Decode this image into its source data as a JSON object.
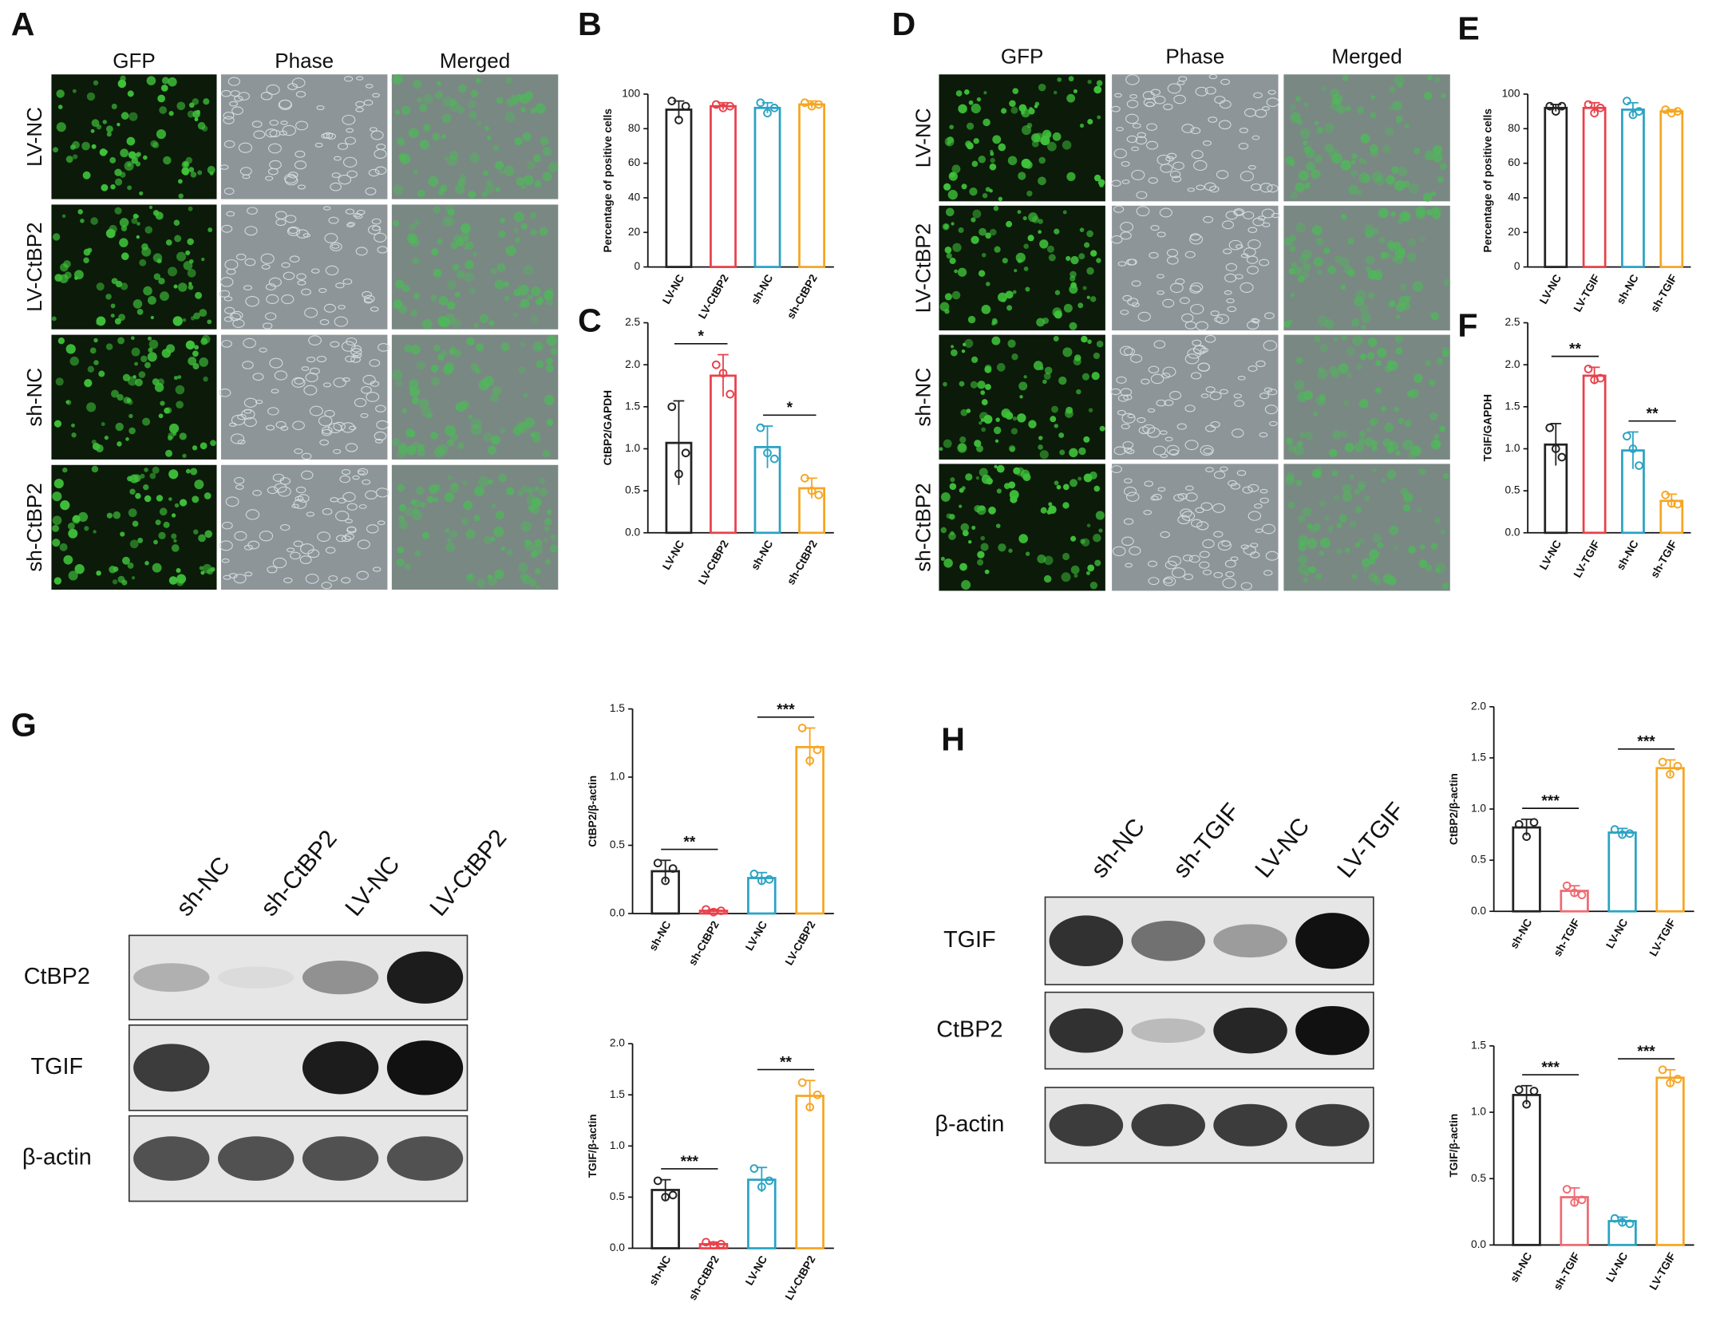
{
  "microscopy": [
    {
      "label": "A",
      "columns": [
        "GFP",
        "Phase",
        "Merged"
      ],
      "rows": [
        "LV-NC",
        "LV-CtBP2",
        "sh-NC",
        "sh-CtBP2"
      ]
    },
    {
      "label": "D",
      "columns": [
        "GFP",
        "Phase",
        "Merged"
      ],
      "rows": [
        "LV-NC",
        "LV-CtBP2",
        "sh-NC",
        "sh-CtBP2"
      ]
    }
  ],
  "blots": [
    {
      "label": "G",
      "lanes": [
        "sh-NC",
        "sh-CtBP2",
        "LV-NC",
        "LV-CtBP2"
      ],
      "proteins": [
        "CtBP2",
        "TGIF",
        "β-actin"
      ]
    },
    {
      "label": "H",
      "lanes": [
        "sh-NC",
        "sh-TGIF",
        "LV-NC",
        "LV-TGIF"
      ],
      "proteins": [
        "TGIF",
        "CtBP2",
        "β-actin"
      ]
    }
  ],
  "chart_data": [
    {
      "type": "bar",
      "label": "B",
      "ylabel": "Percentage of positive cells",
      "categories": [
        "LV-NC",
        "LV-CtBP2",
        "sh-NC",
        "sh-CtBP2"
      ],
      "colors": [
        "#222222",
        "#e8414a",
        "#2aa3c4",
        "#f5a623"
      ],
      "values": [
        91,
        93,
        92,
        94
      ],
      "errors": [
        5,
        2,
        3,
        2
      ],
      "points": [
        [
          96,
          85,
          93
        ],
        [
          94,
          92,
          93
        ],
        [
          95,
          89,
          92
        ],
        [
          95,
          93,
          94
        ]
      ],
      "ylim": [
        0,
        100
      ],
      "yticks": [
        0,
        20,
        40,
        60,
        80,
        100
      ],
      "significance": []
    },
    {
      "type": "bar",
      "label": "C",
      "ylabel": "CtBP2/GAPDH",
      "categories": [
        "LV-NC",
        "LV-CtBP2",
        "sh-NC",
        "sh-CtBP2"
      ],
      "colors": [
        "#222222",
        "#e8414a",
        "#2aa3c4",
        "#f5a623"
      ],
      "values": [
        1.07,
        1.87,
        1.02,
        0.53
      ],
      "errors": [
        0.5,
        0.25,
        0.25,
        0.12
      ],
      "points": [
        [
          1.5,
          0.7,
          0.95
        ],
        [
          2.0,
          1.9,
          1.65
        ],
        [
          1.25,
          0.95,
          0.88
        ],
        [
          0.65,
          0.5,
          0.45
        ]
      ],
      "ylim": [
        0,
        2.5
      ],
      "yticks": [
        {
          "value": 0,
          "label": "0.0"
        },
        0.5,
        {
          "value": 1,
          "label": "1.0"
        },
        1.5,
        {
          "value": 2,
          "label": "2.0"
        },
        2.5
      ],
      "significance": [
        {
          "label": "*",
          "pair": [
            "LV-NC",
            "LV-CtBP2"
          ]
        },
        {
          "label": "*",
          "pair": [
            "sh-NC",
            "sh-CtBP2"
          ]
        }
      ]
    },
    {
      "type": "bar",
      "label": "E",
      "ylabel": "Percentage of positive cells",
      "categories": [
        "LV-NC",
        "LV-TGIF",
        "sh-NC",
        "sh-TGIF"
      ],
      "colors": [
        "#222222",
        "#e8414a",
        "#2aa3c4",
        "#f5a623"
      ],
      "values": [
        92,
        92,
        91,
        90
      ],
      "errors": [
        2,
        3,
        4,
        1
      ],
      "points": [
        [
          93,
          90,
          93
        ],
        [
          94,
          89,
          92
        ],
        [
          96,
          88,
          90
        ],
        [
          91,
          89,
          90
        ]
      ],
      "ylim": [
        0,
        100
      ],
      "yticks": [
        0,
        20,
        40,
        60,
        80,
        100
      ],
      "significance": []
    },
    {
      "type": "bar",
      "label": "F",
      "ylabel": "TGIF/GAPDH",
      "categories": [
        "LV-NC",
        "LV-TGIF",
        "sh-NC",
        "sh-TGIF"
      ],
      "colors": [
        "#222222",
        "#e8414a",
        "#2aa3c4",
        "#f5a623"
      ],
      "values": [
        1.05,
        1.87,
        0.98,
        0.38
      ],
      "errors": [
        0.25,
        0.1,
        0.22,
        0.08
      ],
      "points": [
        [
          1.25,
          1.0,
          0.9
        ],
        [
          1.95,
          1.82,
          1.84
        ],
        [
          1.15,
          1.0,
          0.8
        ],
        [
          0.45,
          0.35,
          0.34
        ]
      ],
      "ylim": [
        0,
        2.5
      ],
      "yticks": [
        {
          "value": 0,
          "label": "0.0"
        },
        0.5,
        {
          "value": 1,
          "label": "1.0"
        },
        1.5,
        {
          "value": 2,
          "label": "2.0"
        },
        2.5
      ],
      "significance": [
        {
          "label": "**",
          "pair": [
            "LV-NC",
            "LV-TGIF"
          ]
        },
        {
          "label": "**",
          "pair": [
            "sh-NC",
            "sh-TGIF"
          ]
        }
      ]
    },
    {
      "type": "bar",
      "ylabel": "CtBP2/β-actin",
      "categories": [
        "sh-NC",
        "sh-CtBP2",
        "LV-NC",
        "LV-CtBP2"
      ],
      "colors": [
        "#222222",
        "#e8414a",
        "#2aa3c4",
        "#f5a623"
      ],
      "values": [
        0.31,
        0.02,
        0.26,
        1.22
      ],
      "errors": [
        0.08,
        0.01,
        0.04,
        0.14
      ],
      "points": [
        [
          0.37,
          0.24,
          0.33
        ],
        [
          0.03,
          0.01,
          0.02
        ],
        [
          0.29,
          0.24,
          0.25
        ],
        [
          1.36,
          1.12,
          1.2
        ]
      ],
      "ylim": [
        0,
        1.5
      ],
      "yticks": [
        {
          "value": 0,
          "label": "0.0"
        },
        0.5,
        {
          "value": 1,
          "label": "1.0"
        },
        1.5
      ],
      "significance": [
        {
          "label": "**",
          "pair": [
            "sh-NC",
            "sh-CtBP2"
          ]
        },
        {
          "label": "***",
          "pair": [
            "LV-NC",
            "LV-CtBP2"
          ]
        }
      ]
    },
    {
      "type": "bar",
      "ylabel": "TGIF/β-actin",
      "categories": [
        "sh-NC",
        "sh-CtBP2",
        "LV-NC",
        "LV-CtBP2"
      ],
      "colors": [
        "#222222",
        "#e8414a",
        "#2aa3c4",
        "#f5a623"
      ],
      "values": [
        0.57,
        0.04,
        0.67,
        1.49
      ],
      "errors": [
        0.1,
        0.02,
        0.12,
        0.15
      ],
      "points": [
        [
          0.66,
          0.5,
          0.52
        ],
        [
          0.06,
          0.03,
          0.04
        ],
        [
          0.78,
          0.6,
          0.66
        ],
        [
          1.62,
          1.38,
          1.5
        ]
      ],
      "ylim": [
        0,
        2
      ],
      "yticks": [
        {
          "value": 0,
          "label": "0.0"
        },
        0.5,
        {
          "value": 1,
          "label": "1.0"
        },
        1.5,
        {
          "value": 2,
          "label": "2.0"
        }
      ],
      "significance": [
        {
          "label": "***",
          "pair": [
            "sh-NC",
            "sh-CtBP2"
          ]
        },
        {
          "label": "**",
          "pair": [
            "LV-NC",
            "LV-CtBP2"
          ]
        }
      ]
    },
    {
      "type": "bar",
      "ylabel": "CtBP2/β-actin",
      "categories": [
        "sh-NC",
        "sh-TGIF",
        "LV-NC",
        "LV-TGIF"
      ],
      "colors": [
        "#222222",
        "#ef6a72",
        "#2aa3c4",
        "#f5a623"
      ],
      "values": [
        0.82,
        0.2,
        0.77,
        1.4
      ],
      "errors": [
        0.08,
        0.05,
        0.04,
        0.08
      ],
      "points": [
        [
          0.85,
          0.73,
          0.87
        ],
        [
          0.25,
          0.18,
          0.16
        ],
        [
          0.8,
          0.75,
          0.76
        ],
        [
          1.46,
          1.34,
          1.42
        ]
      ],
      "ylim": [
        0,
        2
      ],
      "yticks": [
        {
          "value": 0,
          "label": "0.0"
        },
        0.5,
        {
          "value": 1,
          "label": "1.0"
        },
        1.5,
        {
          "value": 2,
          "label": "2.0"
        }
      ],
      "significance": [
        {
          "label": "***",
          "pair": [
            "sh-NC",
            "sh-TGIF"
          ]
        },
        {
          "label": "***",
          "pair": [
            "LV-NC",
            "LV-TGIF"
          ]
        }
      ]
    },
    {
      "type": "bar",
      "ylabel": "TGIF/β-actin",
      "categories": [
        "sh-NC",
        "sh-TGIF",
        "LV-NC",
        "LV-TGIF"
      ],
      "colors": [
        "#222222",
        "#ef6a72",
        "#2aa3c4",
        "#f5a623"
      ],
      "values": [
        1.13,
        0.36,
        0.18,
        1.26
      ],
      "errors": [
        0.07,
        0.07,
        0.03,
        0.06
      ],
      "points": [
        [
          1.17,
          1.06,
          1.16
        ],
        [
          0.42,
          0.32,
          0.34
        ],
        [
          0.2,
          0.17,
          0.16
        ],
        [
          1.32,
          1.22,
          1.25
        ]
      ],
      "ylim": [
        0,
        1.5
      ],
      "yticks": [
        {
          "value": 0,
          "label": "0.0"
        },
        0.5,
        {
          "value": 1,
          "label": "1.0"
        },
        1.5
      ],
      "significance": [
        {
          "label": "***",
          "pair": [
            "sh-NC",
            "sh-TGIF"
          ]
        },
        {
          "label": "***",
          "pair": [
            "LV-NC",
            "LV-TGIF"
          ]
        }
      ]
    }
  ]
}
